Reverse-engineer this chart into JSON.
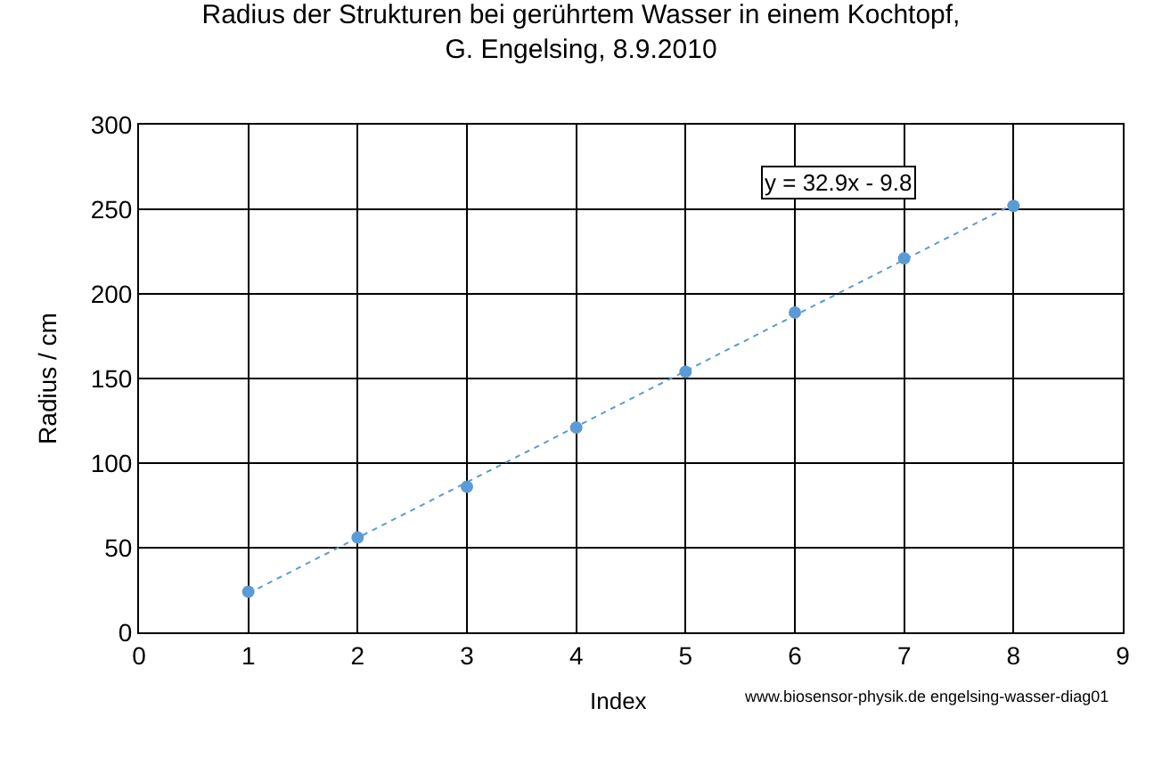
{
  "chart_data": {
    "type": "scatter",
    "title": "Radius der Strukturen bei gerührtem Wasser in einem Kochtopf,\nG. Engelsing, 8.9.2010",
    "xlabel": "Index",
    "ylabel": "Radius / cm",
    "series": [
      {
        "color": "#5b9bd5",
        "x": [
          1,
          2,
          3,
          4,
          5,
          6,
          7,
          8
        ],
        "values": [
          24,
          56,
          86,
          121,
          154,
          189,
          221,
          252
        ],
        "marker": "circle"
      },
      {
        "type": "line",
        "color": "#5b9bd5",
        "x": [
          1,
          8
        ],
        "values": [
          23,
          253
        ],
        "line_style": "dotted",
        "marker": "none"
      }
    ],
    "xlim": [
      0,
      9
    ],
    "xticks": [
      0,
      1,
      2,
      3,
      4,
      5,
      6,
      7,
      8,
      9
    ],
    "ylim": [
      0,
      300
    ],
    "yticks": [
      0,
      50,
      100,
      150,
      200,
      250,
      300
    ],
    "grid": true,
    "annotations": [
      "y = 32.9x - 9.8",
      "www.biosensor-physik.de engelsing-wasser-diag01"
    ]
  }
}
